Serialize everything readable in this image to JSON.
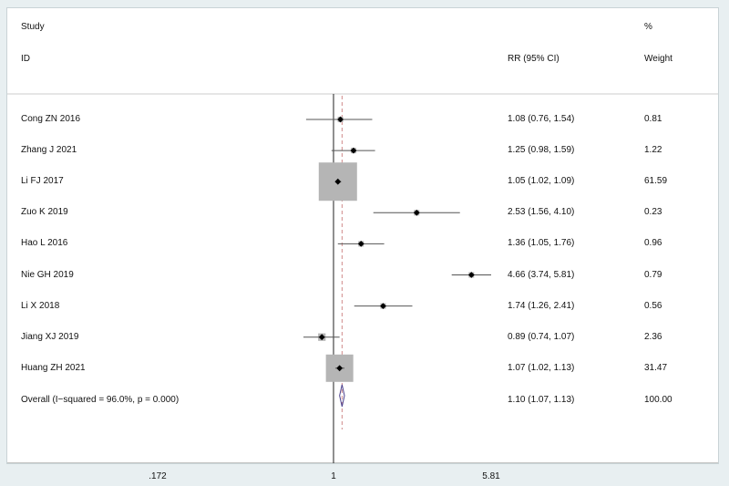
{
  "chart_data": {
    "type": "forest",
    "header": {
      "study_label": "Study",
      "id_label": "ID",
      "effect_label": "RR (95% CI)",
      "weight_pct_label": "%",
      "weight_label": "Weight"
    },
    "x_scale": "log",
    "xlim": [
      0.172,
      5.81
    ],
    "x_ticks": [
      ".172",
      "1",
      "5.81"
    ],
    "x_tick_values": [
      0.172,
      1,
      5.81
    ],
    "null_line": 1,
    "pooled_line": 1.1,
    "studies": [
      {
        "name": "Cong ZN 2016",
        "rr": 1.08,
        "lo": 0.76,
        "hi": 1.54,
        "ci_text": "1.08 (0.76, 1.54)",
        "weight": 0.81,
        "weight_text": "0.81"
      },
      {
        "name": "Zhang J 2021",
        "rr": 1.25,
        "lo": 0.98,
        "hi": 1.59,
        "ci_text": "1.25 (0.98, 1.59)",
        "weight": 1.22,
        "weight_text": "1.22"
      },
      {
        "name": "Li FJ 2017",
        "rr": 1.05,
        "lo": 1.02,
        "hi": 1.09,
        "ci_text": "1.05 (1.02, 1.09)",
        "weight": 61.59,
        "weight_text": "61.59"
      },
      {
        "name": "Zuo K 2019",
        "rr": 2.53,
        "lo": 1.56,
        "hi": 4.1,
        "ci_text": "2.53 (1.56, 4.10)",
        "weight": 0.23,
        "weight_text": "0.23"
      },
      {
        "name": "Hao L 2016",
        "rr": 1.36,
        "lo": 1.05,
        "hi": 1.76,
        "ci_text": "1.36 (1.05, 1.76)",
        "weight": 0.96,
        "weight_text": "0.96"
      },
      {
        "name": "Nie GH 2019",
        "rr": 4.66,
        "lo": 3.74,
        "hi": 5.81,
        "ci_text": "4.66 (3.74, 5.81)",
        "weight": 0.79,
        "weight_text": "0.79"
      },
      {
        "name": "Li X 2018",
        "rr": 1.74,
        "lo": 1.26,
        "hi": 2.41,
        "ci_text": "1.74 (1.26, 2.41)",
        "weight": 0.56,
        "weight_text": "0.56"
      },
      {
        "name": "Jiang XJ 2019",
        "rr": 0.89,
        "lo": 0.74,
        "hi": 1.07,
        "ci_text": "0.89 (0.74, 1.07)",
        "weight": 2.36,
        "weight_text": "2.36"
      },
      {
        "name": "Huang ZH 2021",
        "rr": 1.07,
        "lo": 1.02,
        "hi": 1.13,
        "ci_text": "1.07 (1.02, 1.13)",
        "weight": 31.47,
        "weight_text": "31.47"
      }
    ],
    "overall": {
      "label": "Overall  (I−squared = 96.0%, p = 0.000)",
      "rr": 1.1,
      "lo": 1.07,
      "hi": 1.13,
      "ci_text": "1.10 (1.07, 1.13)",
      "weight_text": "100.00"
    },
    "colors": {
      "background": "#e8eff1",
      "weight_box": "#b5b5b5",
      "point": "#000000",
      "ci_line": "#555555",
      "diamond": "#4a3f8c",
      "pooled_line": "#d08a8a"
    }
  }
}
